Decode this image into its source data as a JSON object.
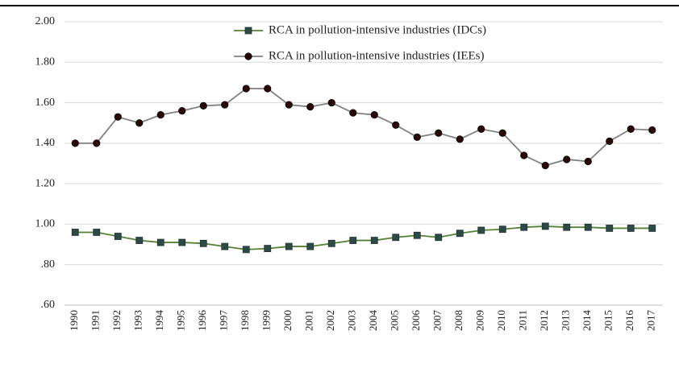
{
  "chart_data": {
    "type": "line",
    "categories": [
      "1990",
      "1991",
      "1992",
      "1993",
      "1994",
      "1995",
      "1996",
      "1997",
      "1998",
      "1999",
      "2000",
      "2001",
      "2002",
      "2003",
      "2004",
      "2005",
      "2006",
      "2007",
      "2008",
      "2009",
      "2010",
      "2011",
      "2012",
      "2013",
      "2014",
      "2015",
      "2016",
      "2017"
    ],
    "series": [
      {
        "name": "RCA in pollution-intensive industries (IDCs)",
        "color": "#548235",
        "marker": "square",
        "marker_color": "#2e4a48",
        "values": [
          0.96,
          0.96,
          0.94,
          0.92,
          0.91,
          0.91,
          0.905,
          0.89,
          0.875,
          0.88,
          0.89,
          0.89,
          0.905,
          0.92,
          0.92,
          0.935,
          0.945,
          0.935,
          0.955,
          0.97,
          0.975,
          0.985,
          0.99,
          0.985,
          0.985,
          0.98,
          0.98,
          0.98
        ]
      },
      {
        "name": "RCA in pollution-intensive industries (IEEs)",
        "color": "#808080",
        "marker": "circle",
        "marker_color": "#2a0808",
        "values": [
          1.4,
          1.4,
          1.53,
          1.5,
          1.54,
          1.56,
          1.585,
          1.59,
          1.67,
          1.67,
          1.59,
          1.58,
          1.6,
          1.55,
          1.54,
          1.49,
          1.43,
          1.45,
          1.42,
          1.47,
          1.45,
          1.34,
          1.29,
          1.32,
          1.31,
          1.41,
          1.47,
          1.465
        ]
      }
    ],
    "ylim": [
      0.6,
      2.0
    ],
    "yticks": [
      {
        "value": 0.6,
        "label": ".60"
      },
      {
        "value": 0.8,
        "label": ".80"
      },
      {
        "value": 1.0,
        "label": "1.00"
      },
      {
        "value": 1.2,
        "label": "1.20"
      },
      {
        "value": 1.4,
        "label": "1.40"
      },
      {
        "value": 1.6,
        "label": "1.60"
      },
      {
        "value": 1.8,
        "label": "1.80"
      },
      {
        "value": 2.0,
        "label": "2.00"
      }
    ],
    "grid": true,
    "legend": "top"
  }
}
